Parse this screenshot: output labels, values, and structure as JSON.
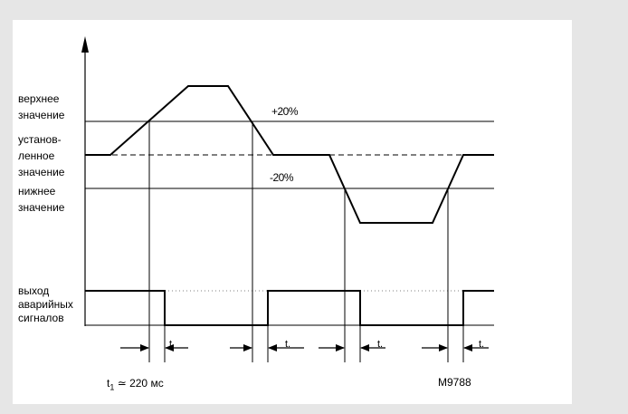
{
  "labels": {
    "upper_value": [
      "верхнее",
      "значение"
    ],
    "set_value": [
      "установ-",
      "ленное",
      "значение"
    ],
    "lower_value": [
      "нижнее",
      "значение"
    ],
    "alarm_output": [
      "выход",
      "аварийных",
      "сигналов"
    ],
    "plus_band": "+20%",
    "minus_band": "-20%",
    "t_marker": "t.",
    "t1_prefix": "t",
    "t1_sub": "1",
    "t1_rest": " ≃ 220 мс",
    "figure_id": "M9788"
  }
}
